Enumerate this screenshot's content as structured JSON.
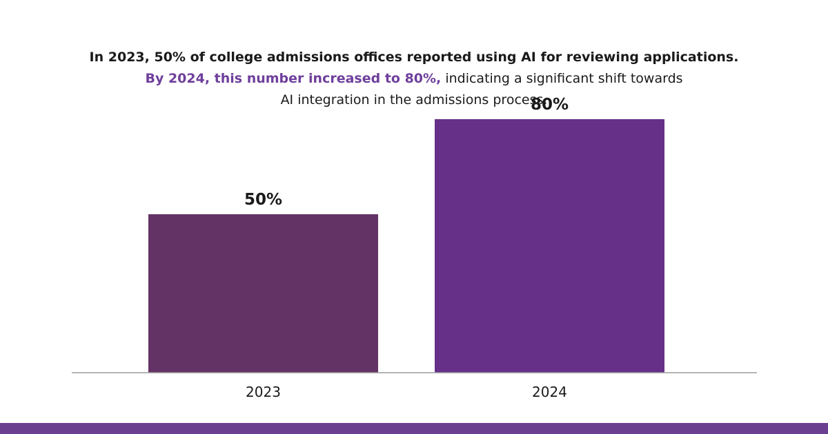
{
  "caption": {
    "line1": "In 2023, 50% of college admissions offices reported using AI for reviewing applications.",
    "line2_highlight": "By 2024, this number increased to 80%,",
    "line2_rest": " indicating a significant shift towards",
    "line3": "AI integration in the admissions process."
  },
  "colors": {
    "highlight_text": "#6f3f9c",
    "bar_2023": "#643366",
    "bar_2024": "#663089",
    "baseline": "#9a9a9a",
    "footer": "#6b3f8f"
  },
  "chart_data": {
    "type": "bar",
    "title": "",
    "xlabel": "",
    "ylabel": "",
    "categories": [
      "2023",
      "2024"
    ],
    "values": [
      50,
      80
    ],
    "value_labels": [
      "50%",
      "80%"
    ],
    "ylim": [
      0,
      100
    ],
    "grid": false,
    "legend": "none"
  }
}
